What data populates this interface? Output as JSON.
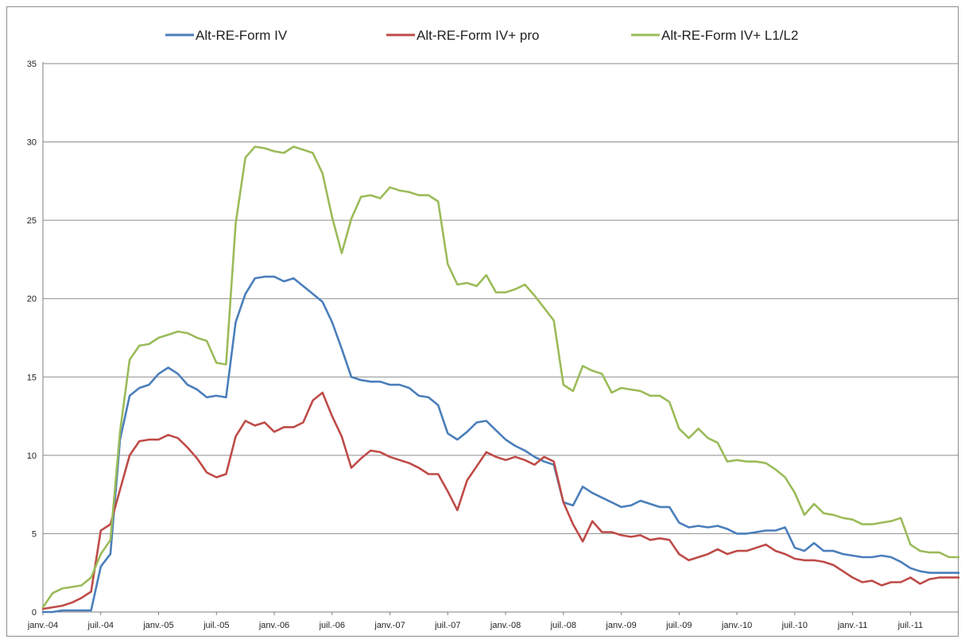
{
  "chart_data": {
    "type": "line",
    "title": "",
    "xlabel": "",
    "ylabel": "",
    "ylim": [
      0,
      35
    ],
    "yticks": [
      0,
      5,
      10,
      15,
      20,
      25,
      30,
      35
    ],
    "grid": true,
    "legend_position": "top",
    "x_tick_labels": [
      "janv.-04",
      "juil.-04",
      "janv.-05",
      "juil.-05",
      "janv.-06",
      "juil.-06",
      "janv.-07",
      "juil.-07",
      "janv.-08",
      "juil.-08",
      "janv.-09",
      "juil.-09",
      "janv.-10",
      "juil.-10",
      "janv.-11",
      "juil.-11"
    ],
    "x_start": "2004-01",
    "x_end": "2011-12",
    "series": [
      {
        "name": "Alt-RE-Form IV",
        "color": "#4a7ebb",
        "points": [
          [
            "2004-01",
            0
          ],
          [
            "2004-02",
            0
          ],
          [
            "2004-03",
            0.1
          ],
          [
            "2004-04",
            0.1
          ],
          [
            "2004-05",
            0.1
          ],
          [
            "2004-06",
            0.1
          ],
          [
            "2004-07",
            2.9
          ],
          [
            "2004-08",
            3.7
          ],
          [
            "2004-09",
            11.0
          ],
          [
            "2004-10",
            13.8
          ],
          [
            "2004-11",
            14.3
          ],
          [
            "2004-12",
            14.5
          ],
          [
            "2005-01",
            15.2
          ],
          [
            "2005-02",
            15.6
          ],
          [
            "2005-03",
            15.2
          ],
          [
            "2005-04",
            14.5
          ],
          [
            "2005-05",
            14.2
          ],
          [
            "2005-06",
            13.7
          ],
          [
            "2005-07",
            13.8
          ],
          [
            "2005-08",
            13.7
          ],
          [
            "2005-09",
            18.5
          ],
          [
            "2005-10",
            20.3
          ],
          [
            "2005-11",
            21.3
          ],
          [
            "2005-12",
            21.4
          ],
          [
            "2006-01",
            21.4
          ],
          [
            "2006-02",
            21.1
          ],
          [
            "2006-03",
            21.3
          ],
          [
            "2006-04",
            20.8
          ],
          [
            "2006-05",
            20.3
          ],
          [
            "2006-06",
            19.8
          ],
          [
            "2006-07",
            18.5
          ],
          [
            "2006-08",
            16.8
          ],
          [
            "2006-09",
            15.0
          ],
          [
            "2006-10",
            14.8
          ],
          [
            "2006-11",
            14.7
          ],
          [
            "2006-12",
            14.7
          ],
          [
            "2007-01",
            14.5
          ],
          [
            "2007-02",
            14.5
          ],
          [
            "2007-03",
            14.3
          ],
          [
            "2007-04",
            13.8
          ],
          [
            "2007-05",
            13.7
          ],
          [
            "2007-06",
            13.2
          ],
          [
            "2007-07",
            11.4
          ],
          [
            "2007-08",
            11.0
          ],
          [
            "2007-09",
            11.5
          ],
          [
            "2007-10",
            12.1
          ],
          [
            "2007-11",
            12.2
          ],
          [
            "2007-12",
            11.6
          ],
          [
            "2008-01",
            11.0
          ],
          [
            "2008-02",
            10.6
          ],
          [
            "2008-03",
            10.3
          ],
          [
            "2008-04",
            9.9
          ],
          [
            "2008-05",
            9.6
          ],
          [
            "2008-06",
            9.4
          ],
          [
            "2008-07",
            7.0
          ],
          [
            "2008-08",
            6.8
          ],
          [
            "2008-09",
            8.0
          ],
          [
            "2008-10",
            7.6
          ],
          [
            "2008-11",
            7.3
          ],
          [
            "2008-12",
            7.0
          ],
          [
            "2009-01",
            6.7
          ],
          [
            "2009-02",
            6.8
          ],
          [
            "2009-03",
            7.1
          ],
          [
            "2009-04",
            6.9
          ],
          [
            "2009-05",
            6.7
          ],
          [
            "2009-06",
            6.7
          ],
          [
            "2009-07",
            5.7
          ],
          [
            "2009-08",
            5.4
          ],
          [
            "2009-09",
            5.5
          ],
          [
            "2009-10",
            5.4
          ],
          [
            "2009-11",
            5.5
          ],
          [
            "2009-12",
            5.3
          ],
          [
            "2010-01",
            5.0
          ],
          [
            "2010-02",
            5.0
          ],
          [
            "2010-03",
            5.1
          ],
          [
            "2010-04",
            5.2
          ],
          [
            "2010-05",
            5.2
          ],
          [
            "2010-06",
            5.4
          ],
          [
            "2010-07",
            4.1
          ],
          [
            "2010-08",
            3.9
          ],
          [
            "2010-09",
            4.4
          ],
          [
            "2010-10",
            3.9
          ],
          [
            "2010-11",
            3.9
          ],
          [
            "2010-12",
            3.7
          ],
          [
            "2011-01",
            3.6
          ],
          [
            "2011-02",
            3.5
          ],
          [
            "2011-03",
            3.5
          ],
          [
            "2011-04",
            3.6
          ],
          [
            "2011-05",
            3.5
          ],
          [
            "2011-06",
            3.2
          ],
          [
            "2011-07",
            2.8
          ],
          [
            "2011-08",
            2.6
          ],
          [
            "2011-09",
            2.5
          ],
          [
            "2011-10",
            2.5
          ],
          [
            "2011-11",
            2.5
          ],
          [
            "2011-12",
            2.5
          ]
        ]
      },
      {
        "name": "Alt-RE-Form IV+ pro",
        "color": "#be4b48",
        "points": [
          [
            "2004-01",
            0.2
          ],
          [
            "2004-02",
            0.3
          ],
          [
            "2004-03",
            0.4
          ],
          [
            "2004-04",
            0.6
          ],
          [
            "2004-05",
            0.9
          ],
          [
            "2004-06",
            1.3
          ],
          [
            "2004-07",
            5.2
          ],
          [
            "2004-08",
            5.6
          ],
          [
            "2004-09",
            7.8
          ],
          [
            "2004-10",
            10.0
          ],
          [
            "2004-11",
            10.9
          ],
          [
            "2004-12",
            11.0
          ],
          [
            "2005-01",
            11.0
          ],
          [
            "2005-02",
            11.3
          ],
          [
            "2005-03",
            11.1
          ],
          [
            "2005-04",
            10.5
          ],
          [
            "2005-05",
            9.8
          ],
          [
            "2005-06",
            8.9
          ],
          [
            "2005-07",
            8.6
          ],
          [
            "2005-08",
            8.8
          ],
          [
            "2005-09",
            11.2
          ],
          [
            "2005-10",
            12.2
          ],
          [
            "2005-11",
            11.9
          ],
          [
            "2005-12",
            12.1
          ],
          [
            "2006-01",
            11.5
          ],
          [
            "2006-02",
            11.8
          ],
          [
            "2006-03",
            11.8
          ],
          [
            "2006-04",
            12.1
          ],
          [
            "2006-05",
            13.5
          ],
          [
            "2006-06",
            14.0
          ],
          [
            "2006-07",
            12.5
          ],
          [
            "2006-08",
            11.2
          ],
          [
            "2006-09",
            9.2
          ],
          [
            "2006-10",
            9.8
          ],
          [
            "2006-11",
            10.3
          ],
          [
            "2006-12",
            10.2
          ],
          [
            "2007-01",
            9.9
          ],
          [
            "2007-02",
            9.7
          ],
          [
            "2007-03",
            9.5
          ],
          [
            "2007-04",
            9.2
          ],
          [
            "2007-05",
            8.8
          ],
          [
            "2007-06",
            8.8
          ],
          [
            "2007-07",
            7.7
          ],
          [
            "2007-08",
            6.5
          ],
          [
            "2007-09",
            8.4
          ],
          [
            "2007-10",
            9.3
          ],
          [
            "2007-11",
            10.2
          ],
          [
            "2007-12",
            9.9
          ],
          [
            "2008-01",
            9.7
          ],
          [
            "2008-02",
            9.9
          ],
          [
            "2008-03",
            9.7
          ],
          [
            "2008-04",
            9.4
          ],
          [
            "2008-05",
            9.9
          ],
          [
            "2008-06",
            9.6
          ],
          [
            "2008-07",
            7.0
          ],
          [
            "2008-08",
            5.6
          ],
          [
            "2008-09",
            4.5
          ],
          [
            "2008-10",
            5.8
          ],
          [
            "2008-11",
            5.1
          ],
          [
            "2008-12",
            5.1
          ],
          [
            "2009-01",
            4.9
          ],
          [
            "2009-02",
            4.8
          ],
          [
            "2009-03",
            4.9
          ],
          [
            "2009-04",
            4.6
          ],
          [
            "2009-05",
            4.7
          ],
          [
            "2009-06",
            4.6
          ],
          [
            "2009-07",
            3.7
          ],
          [
            "2009-08",
            3.3
          ],
          [
            "2009-09",
            3.5
          ],
          [
            "2009-10",
            3.7
          ],
          [
            "2009-11",
            4.0
          ],
          [
            "2009-12",
            3.7
          ],
          [
            "2010-01",
            3.9
          ],
          [
            "2010-02",
            3.9
          ],
          [
            "2010-03",
            4.1
          ],
          [
            "2010-04",
            4.3
          ],
          [
            "2010-05",
            3.9
          ],
          [
            "2010-06",
            3.7
          ],
          [
            "2010-07",
            3.4
          ],
          [
            "2010-08",
            3.3
          ],
          [
            "2010-09",
            3.3
          ],
          [
            "2010-10",
            3.2
          ],
          [
            "2010-11",
            3.0
          ],
          [
            "2010-12",
            2.6
          ],
          [
            "2011-01",
            2.2
          ],
          [
            "2011-02",
            1.9
          ],
          [
            "2011-03",
            2.0
          ],
          [
            "2011-04",
            1.7
          ],
          [
            "2011-05",
            1.9
          ],
          [
            "2011-06",
            1.9
          ],
          [
            "2011-07",
            2.2
          ],
          [
            "2011-08",
            1.8
          ],
          [
            "2011-09",
            2.1
          ],
          [
            "2011-10",
            2.2
          ],
          [
            "2011-11",
            2.2
          ],
          [
            "2011-12",
            2.2
          ]
        ]
      },
      {
        "name": "Alt-RE-Form IV+ L1/L2",
        "color": "#9bbb59",
        "points": [
          [
            "2004-01",
            0.3
          ],
          [
            "2004-02",
            1.2
          ],
          [
            "2004-03",
            1.5
          ],
          [
            "2004-04",
            1.6
          ],
          [
            "2004-05",
            1.7
          ],
          [
            "2004-06",
            2.2
          ],
          [
            "2004-07",
            3.7
          ],
          [
            "2004-08",
            4.6
          ],
          [
            "2004-09",
            11.5
          ],
          [
            "2004-10",
            16.1
          ],
          [
            "2004-11",
            17.0
          ],
          [
            "2004-12",
            17.1
          ],
          [
            "2005-01",
            17.5
          ],
          [
            "2005-02",
            17.7
          ],
          [
            "2005-03",
            17.9
          ],
          [
            "2005-04",
            17.8
          ],
          [
            "2005-05",
            17.5
          ],
          [
            "2005-06",
            17.3
          ],
          [
            "2005-07",
            15.9
          ],
          [
            "2005-08",
            15.8
          ],
          [
            "2005-09",
            24.8
          ],
          [
            "2005-10",
            29.0
          ],
          [
            "2005-11",
            29.7
          ],
          [
            "2005-12",
            29.6
          ],
          [
            "2006-01",
            29.4
          ],
          [
            "2006-02",
            29.3
          ],
          [
            "2006-03",
            29.7
          ],
          [
            "2006-04",
            29.5
          ],
          [
            "2006-05",
            29.3
          ],
          [
            "2006-06",
            28.0
          ],
          [
            "2006-07",
            25.2
          ],
          [
            "2006-08",
            22.9
          ],
          [
            "2006-09",
            25.1
          ],
          [
            "2006-10",
            26.5
          ],
          [
            "2006-11",
            26.6
          ],
          [
            "2006-12",
            26.4
          ],
          [
            "2007-01",
            27.1
          ],
          [
            "2007-02",
            26.9
          ],
          [
            "2007-03",
            26.8
          ],
          [
            "2007-04",
            26.6
          ],
          [
            "2007-05",
            26.6
          ],
          [
            "2007-06",
            26.2
          ],
          [
            "2007-07",
            22.2
          ],
          [
            "2007-08",
            20.9
          ],
          [
            "2007-09",
            21.0
          ],
          [
            "2007-10",
            20.8
          ],
          [
            "2007-11",
            21.5
          ],
          [
            "2007-12",
            20.4
          ],
          [
            "2008-01",
            20.4
          ],
          [
            "2008-02",
            20.6
          ],
          [
            "2008-03",
            20.9
          ],
          [
            "2008-04",
            20.2
          ],
          [
            "2008-05",
            19.4
          ],
          [
            "2008-06",
            18.6
          ],
          [
            "2008-07",
            14.5
          ],
          [
            "2008-08",
            14.1
          ],
          [
            "2008-09",
            15.7
          ],
          [
            "2008-10",
            15.4
          ],
          [
            "2008-11",
            15.2
          ],
          [
            "2008-12",
            14.0
          ],
          [
            "2009-01",
            14.3
          ],
          [
            "2009-02",
            14.2
          ],
          [
            "2009-03",
            14.1
          ],
          [
            "2009-04",
            13.8
          ],
          [
            "2009-05",
            13.8
          ],
          [
            "2009-06",
            13.4
          ],
          [
            "2009-07",
            11.7
          ],
          [
            "2009-08",
            11.1
          ],
          [
            "2009-09",
            11.7
          ],
          [
            "2009-10",
            11.1
          ],
          [
            "2009-11",
            10.8
          ],
          [
            "2009-12",
            9.6
          ],
          [
            "2010-01",
            9.7
          ],
          [
            "2010-02",
            9.6
          ],
          [
            "2010-03",
            9.6
          ],
          [
            "2010-04",
            9.5
          ],
          [
            "2010-05",
            9.1
          ],
          [
            "2010-06",
            8.6
          ],
          [
            "2010-07",
            7.6
          ],
          [
            "2010-08",
            6.2
          ],
          [
            "2010-09",
            6.9
          ],
          [
            "2010-10",
            6.3
          ],
          [
            "2010-11",
            6.2
          ],
          [
            "2010-12",
            6.0
          ],
          [
            "2011-01",
            5.9
          ],
          [
            "2011-02",
            5.6
          ],
          [
            "2011-03",
            5.6
          ],
          [
            "2011-04",
            5.7
          ],
          [
            "2011-05",
            5.8
          ],
          [
            "2011-06",
            6.0
          ],
          [
            "2011-07",
            4.3
          ],
          [
            "2011-08",
            3.9
          ],
          [
            "2011-09",
            3.8
          ],
          [
            "2011-10",
            3.8
          ],
          [
            "2011-11",
            3.5
          ],
          [
            "2011-12",
            3.5
          ]
        ]
      }
    ]
  }
}
